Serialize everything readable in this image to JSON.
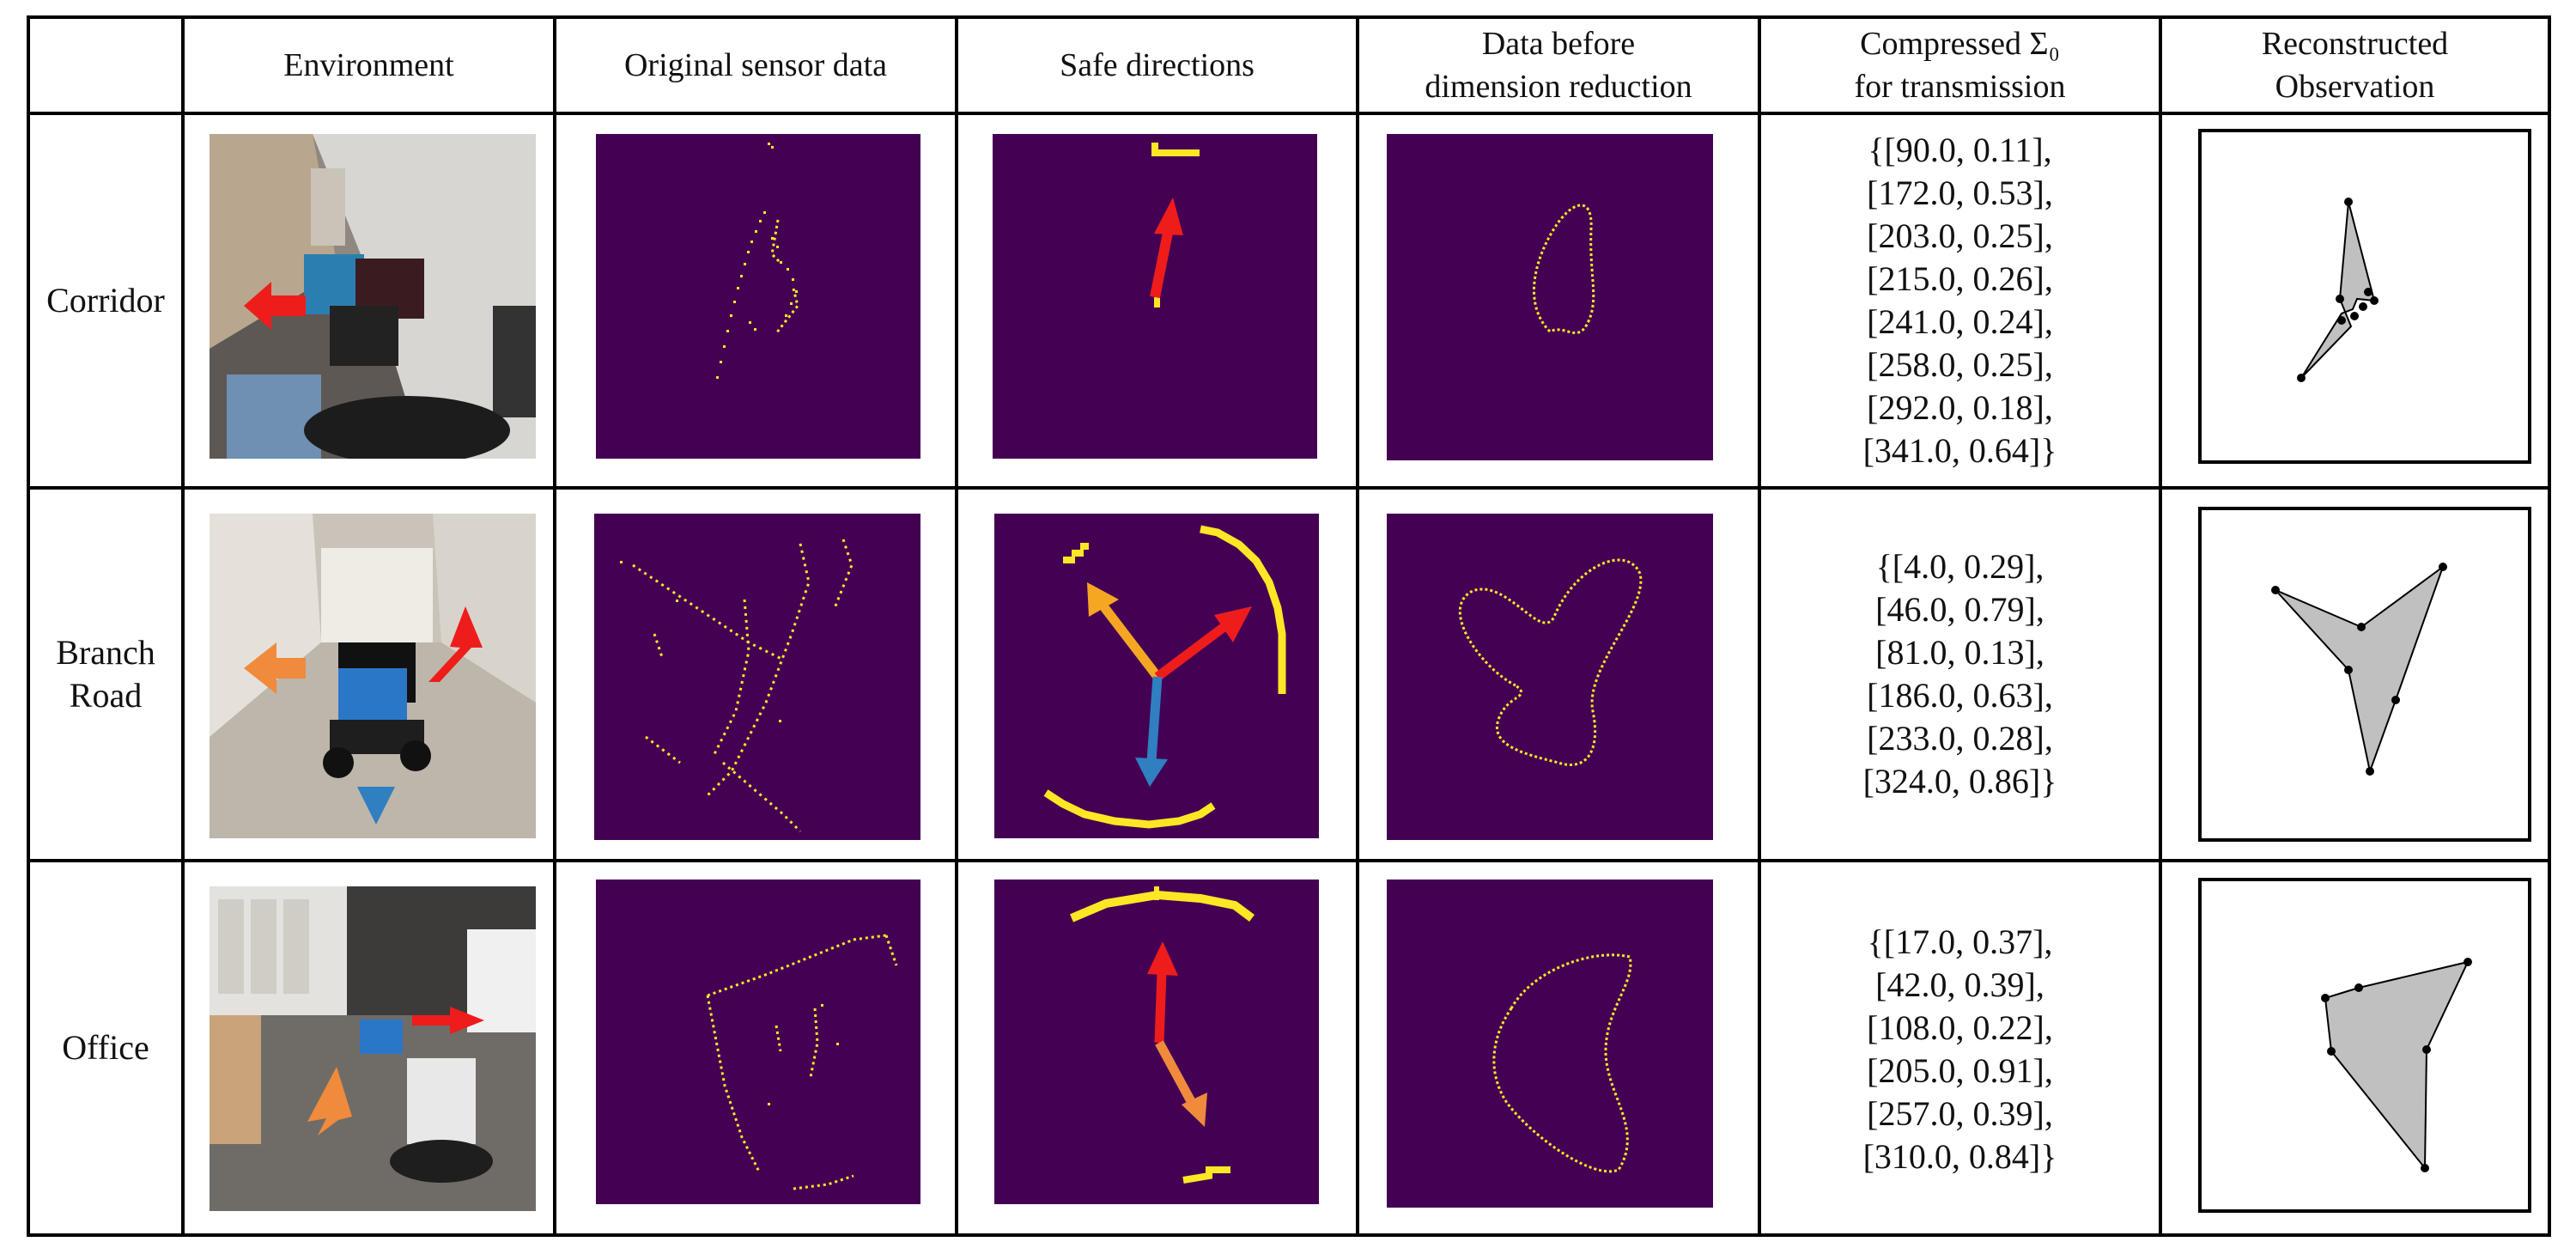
{
  "headers": [
    "",
    "Environment",
    "Original sensor data",
    "Safe directions",
    "Data before\ndimension reduction",
    "Compressed Σ₀\nfor transmission",
    "Reconstructed\nObservation"
  ],
  "rows": [
    {
      "label": "Corridor",
      "compressed": [
        "{[90.0, 0.11],",
        "[172.0, 0.53],",
        "[203.0, 0.25],",
        "[215.0, 0.26],",
        "[241.0, 0.24],",
        "[258.0, 0.25],",
        "[292.0, 0.18],",
        "[341.0, 0.64]}"
      ],
      "arrows": [
        {
          "color": "#ef1c1c"
        }
      ]
    },
    {
      "label": "Branch\nRoad",
      "compressed": [
        "{[4.0, 0.29],",
        "[46.0, 0.79],",
        "[81.0, 0.13],",
        "[186.0, 0.63],",
        "[233.0, 0.28],",
        "[324.0, 0.86]}"
      ],
      "arrows": [
        {
          "color": "#ef1c1c"
        },
        {
          "color": "#f5a623"
        },
        {
          "color": "#2f7fc1"
        }
      ]
    },
    {
      "label": "Office",
      "compressed": [
        "{[17.0, 0.37],",
        "[42.0, 0.39],",
        "[108.0, 0.22],",
        "[205.0, 0.91],",
        "[257.0, 0.39],",
        "[310.0, 0.84]}"
      ],
      "arrows": [
        {
          "color": "#ef1c1c"
        },
        {
          "color": "#f08a3c"
        }
      ]
    }
  ],
  "colors": {
    "plot_bg": "#440154",
    "plot_points": "#fde725",
    "polygon_fill": "#c0c0c0",
    "arrow_red": "#ef1c1c",
    "arrow_orange": "#f08a3c",
    "arrow_blue": "#2f7fc1"
  }
}
